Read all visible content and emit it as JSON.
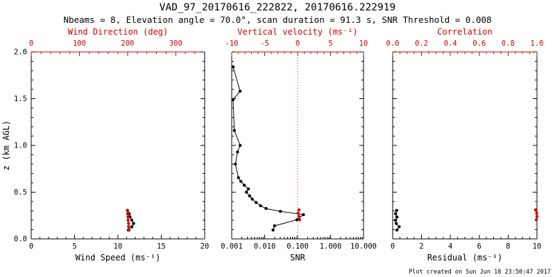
{
  "header": {
    "title": "VAD_97_20170616_222822, 20170616.222919",
    "subtitle": "Nbeams = 8, Elevation angle = 70.0°, scan duration = 91.3 s, SNR Threshold = 0.008"
  },
  "footer": {
    "credit": "Plot created on Sun Jun 18 23:50:47 2017"
  },
  "colors": {
    "axis": "#000000",
    "secondary": "#cc0000",
    "background": "#ffffff"
  },
  "chart_data": [
    {
      "type": "scatter",
      "panel": "wind",
      "ylabel": "z (km AGL)",
      "ylim": [
        0,
        2
      ],
      "show_ylabels": true,
      "yticks": [
        [
          0,
          "0.0"
        ],
        [
          0.5,
          "0.5"
        ],
        [
          1,
          "1.0"
        ],
        [
          1.5,
          "1.5"
        ],
        [
          2,
          "2.0"
        ]
      ],
      "x_bottom": {
        "label": "Wind Speed (ms⁻¹)",
        "scale": "linear",
        "lim": [
          0,
          20
        ],
        "minor": 1,
        "ticks": [
          [
            0,
            "0"
          ],
          [
            5,
            "5"
          ],
          [
            10,
            "10"
          ],
          [
            15,
            "15"
          ],
          [
            20,
            "20"
          ]
        ],
        "color": "#000000"
      },
      "x_top": {
        "label": "Wind Direction (deg)",
        "scale": "linear",
        "lim": [
          0,
          360
        ],
        "minor": 20,
        "ticks": [
          [
            0,
            "0"
          ],
          [
            100,
            "100"
          ],
          [
            200,
            "200"
          ],
          [
            300,
            "300"
          ]
        ],
        "color": "#cc0000"
      },
      "series": [
        {
          "name": "wind-speed",
          "axis": "bottom",
          "color": "#000000",
          "points": [
            [
              11.2,
              0.095
            ],
            [
              11.6,
              0.13
            ],
            [
              11.8,
              0.165
            ],
            [
              11.6,
              0.2
            ],
            [
              11.4,
              0.235
            ],
            [
              11.3,
              0.27
            ],
            [
              11.1,
              0.305
            ]
          ]
        },
        {
          "name": "wind-direction",
          "axis": "top",
          "color": "#cc0000",
          "points": [
            [
              203,
              0.095
            ],
            [
              202,
              0.13
            ],
            [
              202,
              0.165
            ],
            [
              201,
              0.2
            ],
            [
              201,
              0.235
            ],
            [
              200,
              0.27
            ],
            [
              200,
              0.305
            ]
          ]
        }
      ]
    },
    {
      "type": "scatter",
      "panel": "snr",
      "ylabel": "z (km AGL)",
      "ylim": [
        0,
        2
      ],
      "show_ylabels": false,
      "yticks": [
        [
          0,
          "0.0"
        ],
        [
          0.5,
          "0.5"
        ],
        [
          1,
          "1.0"
        ],
        [
          1.5,
          "1.5"
        ],
        [
          2,
          "2.0"
        ]
      ],
      "ref_line_top": 0,
      "x_bottom": {
        "label": "SNR",
        "scale": "log",
        "lim": [
          0.001,
          10
        ],
        "ticks": [
          [
            0.001,
            "0.001"
          ],
          [
            0.01,
            "0.010"
          ],
          [
            0.1,
            "0.100"
          ],
          [
            1,
            "1.000"
          ],
          [
            10,
            "10.000"
          ]
        ],
        "color": "#000000"
      },
      "x_top": {
        "label": "Vertical velocity (ms⁻¹)",
        "scale": "linear",
        "lim": [
          -10,
          10
        ],
        "minor": 1,
        "ticks": [
          [
            -10,
            "-10"
          ],
          [
            -5,
            "-5"
          ],
          [
            0,
            "0"
          ],
          [
            5,
            "5"
          ],
          [
            10,
            "10"
          ]
        ],
        "color": "#cc0000"
      },
      "series": [
        {
          "name": "snr-profile",
          "axis": "bottom",
          "color": "#000000",
          "points": [
            [
              0.018,
              0.095
            ],
            [
              0.02,
              0.14
            ],
            [
              0.095,
              0.205
            ],
            [
              0.15,
              0.26
            ],
            [
              0.03,
              0.295
            ],
            [
              0.011,
              0.325
            ],
            [
              0.0075,
              0.355
            ],
            [
              0.0055,
              0.39
            ],
            [
              0.0042,
              0.425
            ],
            [
              0.0035,
              0.46
            ],
            [
              0.0028,
              0.5
            ],
            [
              0.0032,
              0.535
            ],
            [
              0.0024,
              0.575
            ],
            [
              0.0019,
              0.615
            ],
            [
              0.0016,
              0.655
            ],
            [
              0.0013,
              0.8
            ],
            [
              0.0015,
              0.93
            ],
            [
              0.0018,
              1.0
            ],
            [
              0.0012,
              1.16
            ],
            [
              0.0011,
              1.49
            ],
            [
              0.0018,
              1.58
            ],
            [
              0.0011,
              1.84
            ]
          ]
        },
        {
          "name": "vertical-velocity",
          "axis": "top",
          "color": "#cc0000",
          "points": [
            [
              0.3,
              0.205
            ],
            [
              0.2,
              0.24
            ],
            [
              0.1,
              0.275
            ],
            [
              0.2,
              0.31
            ]
          ]
        }
      ]
    },
    {
      "type": "scatter",
      "panel": "residual",
      "ylabel": "z (km AGL)",
      "ylim": [
        0,
        2
      ],
      "show_ylabels": false,
      "yticks": [
        [
          0,
          "0.0"
        ],
        [
          0.5,
          "0.5"
        ],
        [
          1,
          "1.0"
        ],
        [
          1.5,
          "1.5"
        ],
        [
          2,
          "2.0"
        ]
      ],
      "x_bottom": {
        "label": "Residual (ms⁻¹)",
        "scale": "linear",
        "lim": [
          0,
          10
        ],
        "minor": 0.5,
        "ticks": [
          [
            0,
            "0"
          ],
          [
            2,
            "2"
          ],
          [
            4,
            "4"
          ],
          [
            6,
            "6"
          ],
          [
            8,
            "8"
          ],
          [
            10,
            "10"
          ]
        ],
        "color": "#000000"
      },
      "x_top": {
        "label": "Correlation",
        "scale": "linear",
        "lim": [
          0,
          1
        ],
        "minor": 0.05,
        "ticks": [
          [
            0,
            "0.0"
          ],
          [
            0.2,
            "0.2"
          ],
          [
            0.4,
            "0.4"
          ],
          [
            0.6,
            "0.6"
          ],
          [
            0.8,
            "0.8"
          ],
          [
            1,
            "1.0"
          ]
        ],
        "color": "#cc0000"
      },
      "series": [
        {
          "name": "residual",
          "axis": "bottom",
          "color": "#000000",
          "points": [
            [
              0.3,
              0.095
            ],
            [
              0.45,
              0.13
            ],
            [
              0.25,
              0.165
            ],
            [
              0.2,
              0.2
            ],
            [
              0.3,
              0.235
            ],
            [
              0.2,
              0.27
            ],
            [
              0.28,
              0.305
            ]
          ]
        },
        {
          "name": "correlation",
          "axis": "top",
          "color": "#cc0000",
          "points": [
            [
              0.995,
              0.205
            ],
            [
              1.0,
              0.24
            ],
            [
              0.998,
              0.275
            ],
            [
              0.99,
              0.31
            ]
          ]
        }
      ]
    }
  ]
}
